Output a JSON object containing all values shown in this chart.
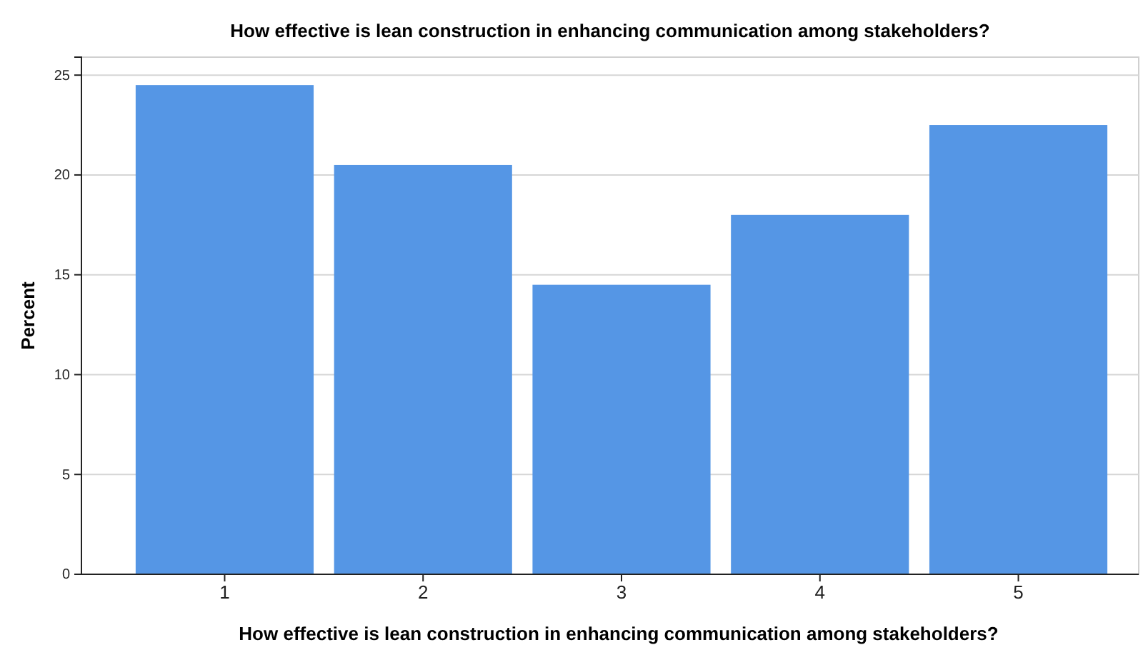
{
  "chart_data": {
    "type": "bar",
    "title": "How effective is lean construction in enhancing communication among stakeholders?",
    "xlabel": "How effective is lean construction in enhancing communication among stakeholders?",
    "ylabel": "Percent",
    "categories": [
      "1",
      "2",
      "3",
      "4",
      "5"
    ],
    "values": [
      24.5,
      20.5,
      14.5,
      18,
      22.5
    ],
    "color": "#5596e5",
    "ylim": [
      0,
      25.9
    ],
    "yticks": [
      0,
      5,
      10,
      15,
      20,
      25
    ],
    "grid": "y"
  }
}
